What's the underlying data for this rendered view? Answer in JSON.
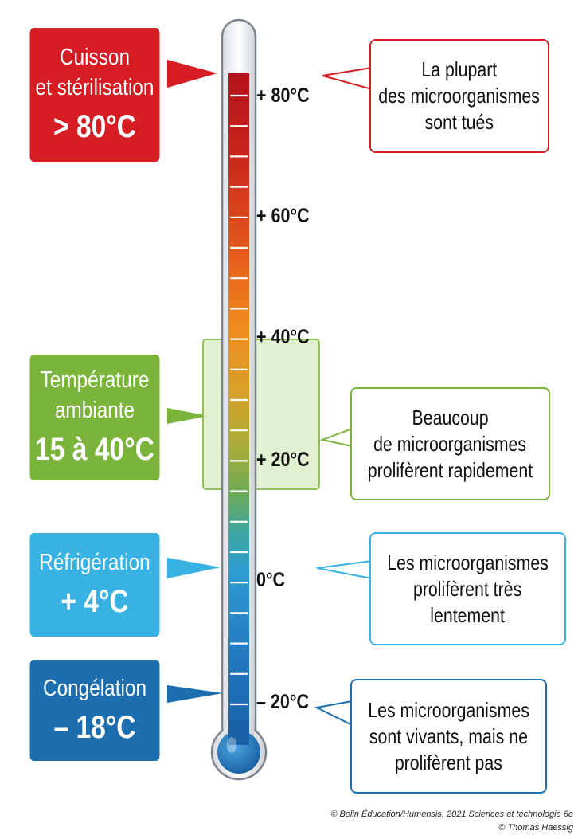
{
  "zones": [
    {
      "title_lines": [
        "Cuisson",
        "et stérilisation"
      ],
      "value": "> 80°C",
      "desc_lines": [
        "La plupart",
        "des microorganismes",
        "sont tués"
      ],
      "color": "#d71d24"
    },
    {
      "title_lines": [
        "Température",
        "ambiante"
      ],
      "value": "15 à 40°C",
      "desc_lines": [
        "Beaucoup",
        "de microorganismes",
        "prolifèrent rapidement"
      ],
      "color": "#7ab43a"
    },
    {
      "title_lines": [
        "Réfrigération"
      ],
      "value": "+ 4°C",
      "desc_lines": [
        "Les microorganismes",
        "prolifèrent très",
        "lentement"
      ],
      "color": "#37b2e3"
    },
    {
      "title_lines": [
        "Congélation"
      ],
      "value": "– 18°C",
      "desc_lines": [
        "Les microorganismes",
        "sont vivants, mais ne",
        "prolifèrent pas"
      ],
      "color": "#1c6eae"
    }
  ],
  "scale_labels": [
    "+ 80°C",
    "+ 60°C",
    "+ 40°C",
    "+ 20°C",
    "0°C",
    "– 20°C"
  ],
  "credits": [
    "© Belin Éducation/Humensis, 2021 Sciences et technologie 6e",
    "© Thomas Haessig"
  ],
  "colors": {
    "hot": "#c4161c",
    "warm": "#f08a1d",
    "mild": "#8db33c",
    "cold": "#1a73b8"
  }
}
